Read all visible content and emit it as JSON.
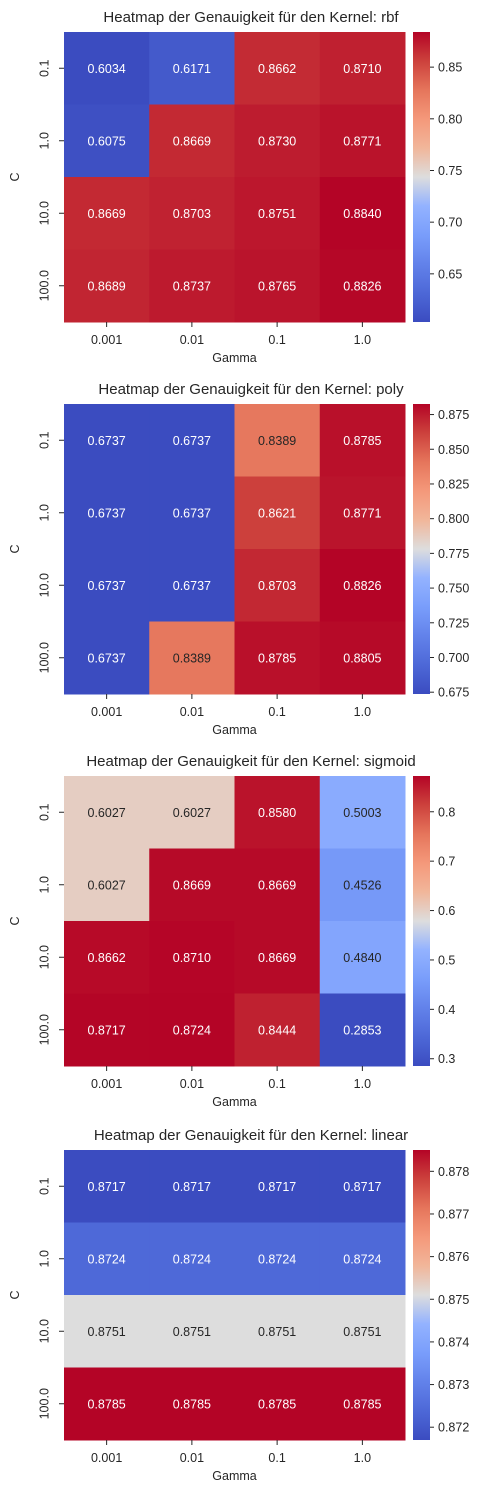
{
  "colors": {
    "cold": "#3b4cc0",
    "neutral": "#dddddd",
    "hot": "#b40426",
    "text_dark": "#262626",
    "text_light": "#ffffff",
    "colormap": "coolwarm"
  },
  "chart_data": [
    {
      "type": "heatmap",
      "title": "Heatmap der Genauigkeit für den Kernel: rbf",
      "xlabel": "Gamma",
      "ylabel": "C",
      "x_categories": [
        "0.001",
        "0.01",
        "0.1",
        "1.0"
      ],
      "y_categories": [
        "0.1",
        "1.0",
        "10.0",
        "100.0"
      ],
      "values": [
        [
          0.6034,
          0.6171,
          0.8662,
          0.871
        ],
        [
          0.6075,
          0.8669,
          0.873,
          0.8771
        ],
        [
          0.8669,
          0.8703,
          0.8751,
          0.884
        ],
        [
          0.8689,
          0.8737,
          0.8765,
          0.8826
        ]
      ],
      "colorbar": {
        "range": [
          0.6034,
          0.884
        ],
        "ticks": [
          0.65,
          0.7,
          0.75,
          0.8,
          0.85
        ],
        "tick_labels": [
          "0.65",
          "0.70",
          "0.75",
          "0.80",
          "0.85"
        ]
      }
    },
    {
      "type": "heatmap",
      "title": "Heatmap der Genauigkeit für den Kernel: poly",
      "xlabel": "Gamma",
      "ylabel": "C",
      "x_categories": [
        "0.001",
        "0.01",
        "0.1",
        "1.0"
      ],
      "y_categories": [
        "0.1",
        "1.0",
        "10.0",
        "100.0"
      ],
      "values": [
        [
          0.6737,
          0.6737,
          0.8389,
          0.8785
        ],
        [
          0.6737,
          0.6737,
          0.8621,
          0.8771
        ],
        [
          0.6737,
          0.6737,
          0.8703,
          0.8826
        ],
        [
          0.6737,
          0.8389,
          0.8785,
          0.8805
        ]
      ],
      "colorbar": {
        "range": [
          0.6737,
          0.8826
        ],
        "ticks": [
          0.675,
          0.7,
          0.725,
          0.75,
          0.775,
          0.8,
          0.825,
          0.85,
          0.875
        ],
        "tick_labels": [
          "0.675",
          "0.700",
          "0.725",
          "0.750",
          "0.775",
          "0.800",
          "0.825",
          "0.850",
          "0.875"
        ]
      }
    },
    {
      "type": "heatmap",
      "title": "Heatmap der Genauigkeit für den Kernel: sigmoid",
      "xlabel": "Gamma",
      "ylabel": "C",
      "x_categories": [
        "0.001",
        "0.01",
        "0.1",
        "1.0"
      ],
      "y_categories": [
        "0.1",
        "1.0",
        "10.0",
        "100.0"
      ],
      "values": [
        [
          0.6027,
          0.6027,
          0.858,
          0.5003
        ],
        [
          0.6027,
          0.8669,
          0.8669,
          0.4526
        ],
        [
          0.8662,
          0.871,
          0.8669,
          0.484
        ],
        [
          0.8717,
          0.8724,
          0.8444,
          0.2853
        ]
      ],
      "colorbar": {
        "range": [
          0.2853,
          0.8724
        ],
        "ticks": [
          0.3,
          0.4,
          0.5,
          0.6,
          0.7,
          0.8
        ],
        "tick_labels": [
          "0.3",
          "0.4",
          "0.5",
          "0.6",
          "0.7",
          "0.8"
        ]
      }
    },
    {
      "type": "heatmap",
      "title": "Heatmap der Genauigkeit für den Kernel: linear",
      "xlabel": "Gamma",
      "ylabel": "C",
      "x_categories": [
        "0.001",
        "0.01",
        "0.1",
        "1.0"
      ],
      "y_categories": [
        "0.1",
        "1.0",
        "10.0",
        "100.0"
      ],
      "values": [
        [
          0.8717,
          0.8717,
          0.8717,
          0.8717
        ],
        [
          0.8724,
          0.8724,
          0.8724,
          0.8724
        ],
        [
          0.8751,
          0.8751,
          0.8751,
          0.8751
        ],
        [
          0.8785,
          0.8785,
          0.8785,
          0.8785
        ]
      ],
      "colorbar": {
        "range": [
          0.8717,
          0.8785
        ],
        "ticks": [
          0.872,
          0.873,
          0.874,
          0.875,
          0.876,
          0.877,
          0.878
        ],
        "tick_labels": [
          "0.872",
          "0.873",
          "0.874",
          "0.875",
          "0.876",
          "0.877",
          "0.878"
        ]
      }
    }
  ]
}
